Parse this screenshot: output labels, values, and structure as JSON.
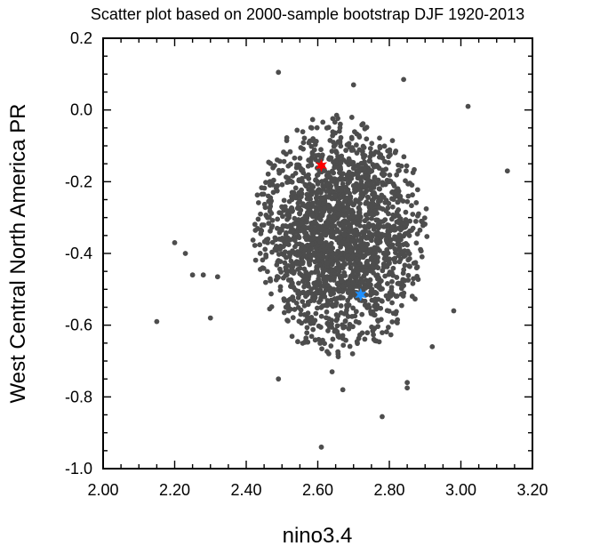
{
  "chart_data": {
    "type": "scatter",
    "title": "Scatter plot based on 2000-sample bootstrap DJF 1920-2013",
    "xlabel": "nino3.4",
    "ylabel": "West Central North America PR",
    "xlim": [
      2.0,
      3.2
    ],
    "ylim": [
      -1.0,
      0.2
    ],
    "x_tick_labels": [
      "2.00",
      "2.20",
      "2.40",
      "2.60",
      "2.80",
      "3.00",
      "3.20"
    ],
    "y_tick_labels": [
      "0.2",
      "0.0",
      "-0.2",
      "-0.4",
      "-0.6",
      "-0.8",
      "-1.0"
    ],
    "grid": false,
    "series": [
      {
        "marker": "dot",
        "color": "#4d4d4d",
        "sample_size": 2000,
        "x_mean": 2.66,
        "x_sd": 0.115,
        "y_mean": -0.35,
        "y_sd": 0.155,
        "x_range": [
          2.15,
          3.13
        ],
        "y_range": [
          -0.94,
          0.11
        ],
        "listed_points": [
          [
            2.49,
            0.105
          ],
          [
            2.7,
            0.07
          ],
          [
            2.84,
            0.085
          ],
          [
            3.02,
            0.01
          ],
          [
            3.13,
            -0.17
          ],
          [
            2.15,
            -0.59
          ],
          [
            2.2,
            -0.37
          ],
          [
            2.23,
            -0.4
          ],
          [
            2.25,
            -0.46
          ],
          [
            2.28,
            -0.46
          ],
          [
            2.3,
            -0.58
          ],
          [
            2.32,
            -0.465
          ],
          [
            2.49,
            -0.75
          ],
          [
            2.67,
            -0.78
          ],
          [
            2.78,
            -0.855
          ],
          [
            2.85,
            -0.76
          ],
          [
            2.85,
            -0.775
          ],
          [
            2.61,
            -0.94
          ],
          [
            2.98,
            -0.56
          ],
          [
            2.92,
            -0.66
          ],
          [
            2.64,
            -0.73
          ]
        ]
      },
      {
        "marker": "star",
        "color": "#ff0000",
        "points": [
          [
            2.61,
            -0.155
          ]
        ]
      },
      {
        "marker": "star",
        "color": "#1e90ff",
        "points": [
          [
            2.72,
            -0.515
          ]
        ]
      }
    ]
  }
}
